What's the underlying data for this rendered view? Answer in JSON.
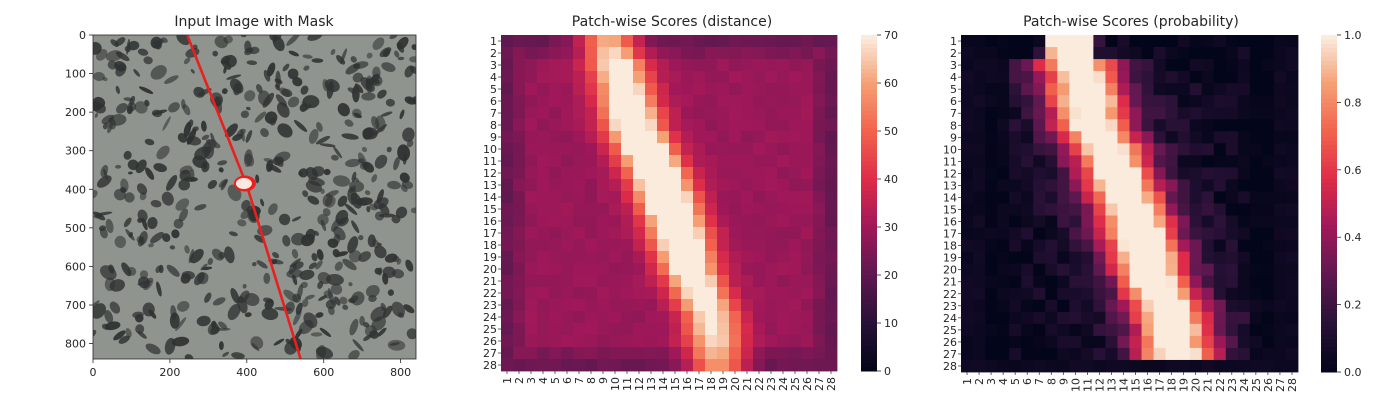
{
  "chart_data": [
    {
      "type": "image",
      "title": "Input Image with Mask",
      "description_free": true,
      "xlim": [
        0,
        840
      ],
      "ylim": [
        840,
        0
      ],
      "x_ticks": [
        0,
        200,
        400,
        600,
        800
      ],
      "y_ticks": [
        0,
        100,
        200,
        300,
        400,
        500,
        600,
        700,
        800
      ],
      "mask_line": [
        [
          245,
          0
        ],
        [
          400,
          390
        ],
        [
          540,
          840
        ]
      ],
      "mask_blob": [
        395,
        385
      ],
      "colors": {
        "background": "#8f958e",
        "speckle": "#2f3232",
        "mask": "#e8201e",
        "blob": "#fbe8e2"
      }
    },
    {
      "type": "heatmap",
      "title": "Patch-wise Scores (distance)",
      "rows": 28,
      "cols": 28,
      "row_labels": [
        "1",
        "2",
        "3",
        "4",
        "5",
        "6",
        "7",
        "8",
        "9",
        "10",
        "11",
        "12",
        "13",
        "14",
        "15",
        "16",
        "17",
        "18",
        "19",
        "20",
        "21",
        "22",
        "23",
        "24",
        "25",
        "26",
        "27",
        "28"
      ],
      "col_labels": [
        "1",
        "2",
        "3",
        "4",
        "5",
        "6",
        "7",
        "8",
        "9",
        "10",
        "11",
        "12",
        "13",
        "14",
        "15",
        "16",
        "17",
        "18",
        "19",
        "20",
        "21",
        "22",
        "23",
        "24",
        "25",
        "26",
        "27",
        "28"
      ],
      "colorbar": {
        "min": 0,
        "max": 70,
        "ticks": [
          0,
          10,
          20,
          30,
          40,
          50,
          60,
          70
        ]
      },
      "peak_value": 70,
      "baseline_value": 28,
      "ridge": [
        [
          1,
          9.5
        ],
        [
          4,
          10.5
        ],
        [
          8,
          11.5
        ],
        [
          12,
          13.5
        ],
        [
          16,
          15
        ],
        [
          20,
          16.2
        ],
        [
          24,
          18
        ],
        [
          28,
          18.5
        ]
      ],
      "colormap": "rocket"
    },
    {
      "type": "heatmap",
      "title": "Patch-wise Scores (probability)",
      "rows": 28,
      "cols": 28,
      "row_labels": [
        "1",
        "2",
        "3",
        "4",
        "5",
        "6",
        "7",
        "8",
        "9",
        "10",
        "11",
        "12",
        "13",
        "14",
        "15",
        "16",
        "17",
        "18",
        "19",
        "20",
        "21",
        "22",
        "23",
        "24",
        "25",
        "26",
        "27",
        "28"
      ],
      "col_labels": [
        "1",
        "2",
        "3",
        "4",
        "5",
        "6",
        "7",
        "8",
        "9",
        "10",
        "11",
        "12",
        "13",
        "14",
        "15",
        "16",
        "17",
        "18",
        "19",
        "20",
        "21",
        "22",
        "23",
        "24",
        "25",
        "26",
        "27",
        "28"
      ],
      "colorbar": {
        "min": 0,
        "max": 1,
        "ticks": [
          "0.0",
          "0.2",
          "0.4",
          "0.6",
          "0.8",
          "1.0"
        ]
      },
      "peak_value": 1.0,
      "baseline_value": 0.0,
      "ridge": [
        [
          1,
          9.5
        ],
        [
          4,
          10.5
        ],
        [
          8,
          11.5
        ],
        [
          12,
          13.5
        ],
        [
          16,
          15
        ],
        [
          20,
          16.2
        ],
        [
          24,
          18
        ],
        [
          28,
          18.5
        ]
      ],
      "colormap": "rocket"
    }
  ]
}
